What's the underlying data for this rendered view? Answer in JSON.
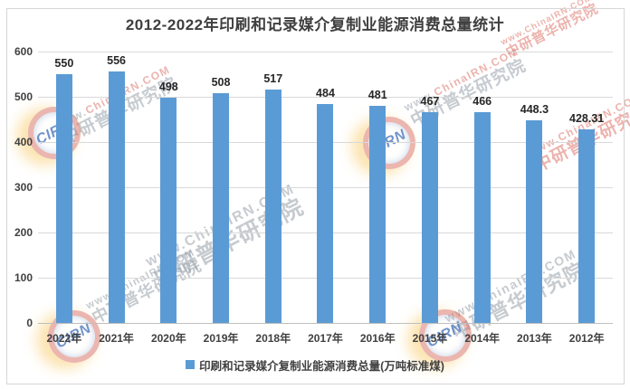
{
  "title": "2012-2022年印刷和记录媒介复制业能源消费总量统计",
  "legend": {
    "label": "印刷和记录媒介复制业能源消费总量(万吨标准煤)"
  },
  "colors": {
    "bar": "#5b9bd5",
    "gridline": "#d9d9d9",
    "axis_line": "#bfbfbf",
    "title_text": "#3f3f3f",
    "axis_text": "#404040",
    "data_label_text": "#262626",
    "chart_border": "#d6d6d6"
  },
  "chart_data": {
    "type": "bar",
    "title": "2012-2022年印刷和记录媒介复制业能源消费总量统计",
    "categories": [
      "2022年",
      "2021年",
      "2020年",
      "2019年",
      "2018年",
      "2017年",
      "2016年",
      "2015年",
      "2014年",
      "2013年",
      "2012年"
    ],
    "series": [
      {
        "name": "印刷和记录媒介复制业能源消费总量(万吨标准煤)",
        "values": [
          550,
          556,
          498,
          508,
          517,
          484,
          481,
          467,
          466,
          448.3,
          428.31
        ]
      }
    ],
    "data_labels": [
      "550",
      "556",
      "498",
      "508",
      "517",
      "484",
      "481",
      "467",
      "466",
      "448.3",
      "428.31"
    ],
    "xlabel": "",
    "ylabel": "",
    "ylim": [
      0,
      600
    ],
    "ytick_step": 100,
    "ytick_labels": [
      "0",
      "100",
      "200",
      "300",
      "400",
      "500",
      "600"
    ],
    "grid": true,
    "legend_position": "bottom"
  },
  "watermark": {
    "logo_text": "CIRN",
    "line1_prefix": "www.",
    "line1_suffix": "ChinaIRN.COM",
    "line2": "中研普华研究院"
  }
}
